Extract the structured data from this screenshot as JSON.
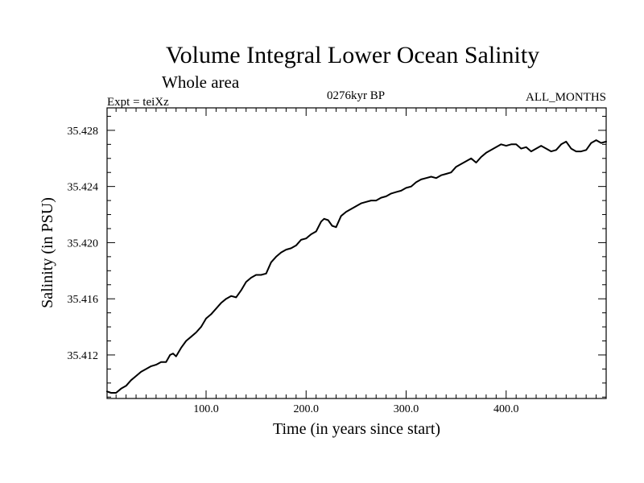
{
  "chart_data": {
    "type": "line",
    "title": "Volume Integral Lower Ocean Salinity",
    "subtitle": "Whole area",
    "experiment": "Expt = teiXz",
    "period": "0276kyr BP",
    "months": "ALL_MONTHS",
    "xlabel": "Time (in years since start)",
    "ylabel": "Salinity (in PSU)",
    "xlim": [
      1,
      500
    ],
    "ylim": [
      35.4089,
      35.4296
    ],
    "xticks": [
      100.0,
      200.0,
      300.0,
      400.0
    ],
    "xtick_labels": [
      "100.0",
      "200.0",
      "300.0",
      "400.0"
    ],
    "yticks": [
      35.412,
      35.416,
      35.42,
      35.424,
      35.428
    ],
    "ytick_labels": [
      "35.412",
      "35.416",
      "35.420",
      "35.424",
      "35.428"
    ],
    "grid": false,
    "series": [
      {
        "name": "",
        "color": "#000000",
        "x": [
          1,
          5,
          10,
          15,
          20,
          25,
          30,
          35,
          40,
          45,
          50,
          55,
          60,
          64,
          67,
          70,
          75,
          80,
          85,
          90,
          95,
          100,
          105,
          110,
          115,
          120,
          125,
          130,
          135,
          140,
          145,
          150,
          155,
          160,
          165,
          170,
          175,
          180,
          185,
          190,
          195,
          200,
          205,
          210,
          215,
          218,
          222,
          226,
          230,
          235,
          240,
          245,
          250,
          255,
          260,
          265,
          270,
          275,
          280,
          285,
          290,
          295,
          300,
          305,
          310,
          315,
          320,
          325,
          330,
          335,
          340,
          345,
          350,
          355,
          360,
          365,
          370,
          375,
          380,
          385,
          390,
          395,
          400,
          405,
          410,
          415,
          420,
          425,
          430,
          435,
          440,
          445,
          450,
          455,
          460,
          465,
          470,
          475,
          480,
          485,
          490,
          495,
          500
        ],
        "values": [
          35.4094,
          35.4093,
          35.4093,
          35.4096,
          35.4098,
          35.4102,
          35.4105,
          35.4108,
          35.411,
          35.4112,
          35.4113,
          35.4115,
          35.4115,
          35.412,
          35.4121,
          35.4119,
          35.4125,
          35.413,
          35.4133,
          35.4136,
          35.414,
          35.4146,
          35.4149,
          35.4153,
          35.4157,
          35.416,
          35.4162,
          35.4161,
          35.4166,
          35.4172,
          35.4175,
          35.4177,
          35.4177,
          35.4178,
          35.4186,
          35.419,
          35.4193,
          35.4195,
          35.4196,
          35.4198,
          35.4202,
          35.4203,
          35.4206,
          35.4208,
          35.4215,
          35.4217,
          35.4216,
          35.4212,
          35.4211,
          35.4219,
          35.4222,
          35.4224,
          35.4226,
          35.4228,
          35.4229,
          35.423,
          35.423,
          35.4232,
          35.4233,
          35.4235,
          35.4236,
          35.4237,
          35.4239,
          35.424,
          35.4243,
          35.4245,
          35.4246,
          35.4247,
          35.4246,
          35.4248,
          35.4249,
          35.425,
          35.4254,
          35.4256,
          35.4258,
          35.426,
          35.4257,
          35.4261,
          35.4264,
          35.4266,
          35.4268,
          35.427,
          35.4269,
          35.427,
          35.427,
          35.4267,
          35.4268,
          35.4265,
          35.4267,
          35.4269,
          35.4267,
          35.4265,
          35.4266,
          35.427,
          35.4272,
          35.4267,
          35.4265,
          35.4265,
          35.4266,
          35.4271,
          35.4273,
          35.4271,
          35.4272
        ]
      }
    ]
  }
}
